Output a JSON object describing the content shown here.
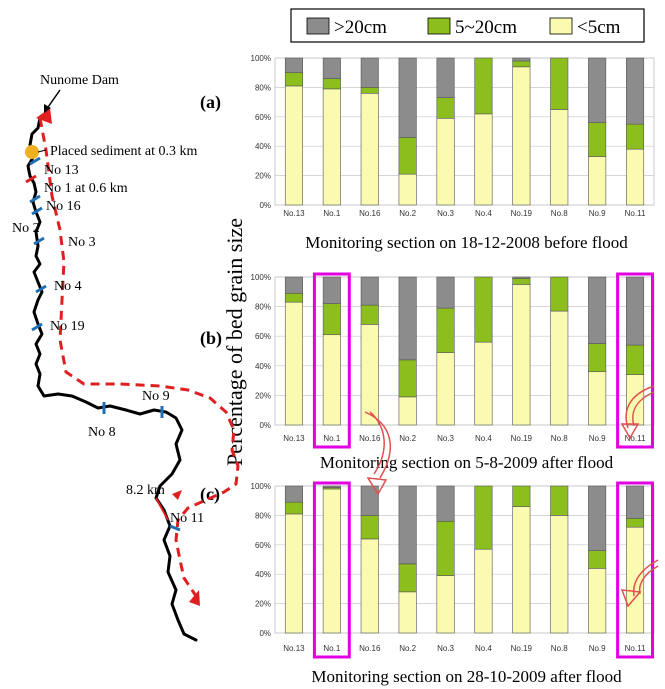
{
  "legend": {
    "items": [
      {
        "label": ">20cm",
        "color": "#8c8c8c"
      },
      {
        "label": "5~20cm",
        "color": "#8cbf1e"
      },
      {
        "label": "<5cm",
        "color": "#fafab0"
      }
    ]
  },
  "y_axis_label": "Percentage of bed grain size",
  "ytick_labels": [
    "0%",
    "20%",
    "40%",
    "60%",
    "80%",
    "100%"
  ],
  "colors": {
    "coarse": "#8c8c8c",
    "medium": "#8cbf1e",
    "fine": "#fafab0",
    "highlight": "#e000e0",
    "river": "#000000",
    "route": "#e02020",
    "section_tick": "#1f6fb5",
    "sediment": "#f0b020"
  },
  "map": {
    "dam_label": "Nunome Dam",
    "sediment_label": "Placed sediment at 0.3 km",
    "labels": [
      "No 13",
      "No 1 at 0.6 km",
      "No 16",
      "No 2",
      "No 3",
      "No 4",
      "No 19",
      "No 9",
      "No 8",
      "8.2 km",
      "No 11"
    ]
  },
  "chart_data": [
    {
      "type": "bar",
      "stacked": true,
      "panel_label": "(a)",
      "caption": "Monitoring section on 18-12-2008 before flood",
      "categories": [
        "No.13",
        "No.1",
        "No.16",
        "No.2",
        "No.3",
        "No.4",
        "No.19",
        "No.8",
        "No.9",
        "No.11"
      ],
      "series": [
        {
          "name": "<5cm",
          "values": [
            81,
            79,
            76,
            21,
            59,
            62,
            94,
            65,
            33,
            38
          ]
        },
        {
          "name": "5~20cm",
          "values": [
            9,
            7,
            4,
            25,
            14,
            38,
            4,
            35,
            23,
            17
          ]
        },
        {
          "name": ">20cm",
          "values": [
            10,
            14,
            20,
            54,
            27,
            0,
            2,
            0,
            44,
            45
          ]
        }
      ],
      "ylim": [
        0,
        100
      ],
      "highlighted": []
    },
    {
      "type": "bar",
      "stacked": true,
      "panel_label": "(b)",
      "caption": "Monitoring section on 5-8-2009 after flood",
      "categories": [
        "No.13",
        "No.1",
        "No.16",
        "No.2",
        "No.3",
        "No.4",
        "No.19",
        "No.8",
        "No.9",
        "No.11"
      ],
      "series": [
        {
          "name": "<5cm",
          "values": [
            83,
            61,
            68,
            19,
            49,
            56,
            95,
            77,
            36,
            34
          ]
        },
        {
          "name": "5~20cm",
          "values": [
            6,
            21,
            13,
            25,
            30,
            44,
            4,
            23,
            19,
            20
          ]
        },
        {
          "name": ">20cm",
          "values": [
            11,
            18,
            19,
            56,
            21,
            0,
            1,
            0,
            45,
            46
          ]
        }
      ],
      "ylim": [
        0,
        100
      ],
      "highlighted": [
        "No.1",
        "No.11"
      ]
    },
    {
      "type": "bar",
      "stacked": true,
      "panel_label": "(c)",
      "caption": "Monitoring section on 28-10-2009 after flood",
      "categories": [
        "No.13",
        "No.1",
        "No.16",
        "No.2",
        "No.3",
        "No.4",
        "No.19",
        "No.8",
        "No.9",
        "No.11"
      ],
      "series": [
        {
          "name": "<5cm",
          "values": [
            81,
            98,
            64,
            28,
            39,
            57,
            86,
            80,
            44,
            72
          ]
        },
        {
          "name": "5~20cm",
          "values": [
            8,
            1,
            16,
            19,
            37,
            43,
            14,
            20,
            12,
            6
          ]
        },
        {
          "name": ">20cm",
          "values": [
            11,
            1,
            20,
            53,
            24,
            0,
            0,
            0,
            44,
            22
          ]
        }
      ],
      "ylim": [
        0,
        100
      ],
      "highlighted": [
        "No.1",
        "No.11"
      ]
    }
  ]
}
